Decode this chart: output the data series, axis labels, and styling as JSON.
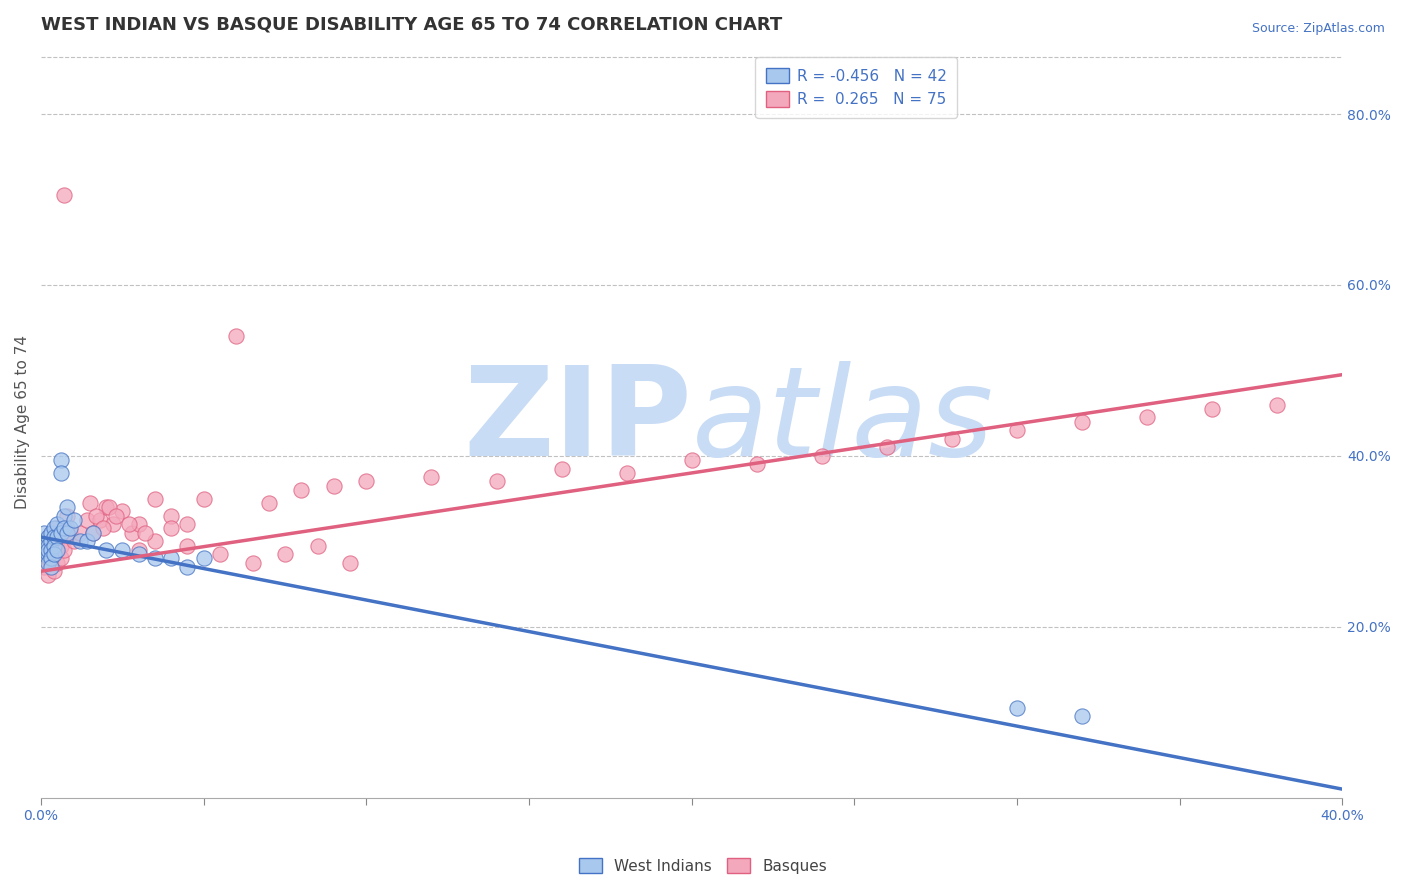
{
  "title": "WEST INDIAN VS BASQUE DISABILITY AGE 65 TO 74 CORRELATION CHART",
  "source": "Source: ZipAtlas.com",
  "ylabel": "Disability Age 65 to 74",
  "xlim": [
    0.0,
    0.4
  ],
  "ylim": [
    0.0,
    0.88
  ],
  "yticks": [
    0.0,
    0.2,
    0.4,
    0.6,
    0.8
  ],
  "ytick_labels": [
    "",
    "20.0%",
    "40.0%",
    "60.0%",
    "80.0%"
  ],
  "west_indians_r": "-0.456",
  "west_indians_n": "42",
  "basques_r": "0.265",
  "basques_n": "75",
  "west_indians_color": "#A8C8EE",
  "basques_color": "#F4A8BC",
  "west_indians_line_color": "#4472C4",
  "basques_line_color": "#E06080",
  "background_color": "#FFFFFF",
  "watermark_color": "#C8DCF5",
  "west_indians_x": [
    0.001,
    0.001,
    0.001,
    0.001,
    0.002,
    0.002,
    0.002,
    0.002,
    0.002,
    0.003,
    0.003,
    0.003,
    0.003,
    0.003,
    0.004,
    0.004,
    0.004,
    0.004,
    0.005,
    0.005,
    0.005,
    0.006,
    0.006,
    0.006,
    0.007,
    0.007,
    0.008,
    0.008,
    0.009,
    0.01,
    0.012,
    0.014,
    0.016,
    0.02,
    0.025,
    0.03,
    0.035,
    0.04,
    0.045,
    0.05,
    0.3,
    0.32
  ],
  "west_indians_y": [
    0.3,
    0.295,
    0.285,
    0.31,
    0.305,
    0.295,
    0.285,
    0.29,
    0.275,
    0.3,
    0.31,
    0.29,
    0.28,
    0.27,
    0.315,
    0.305,
    0.295,
    0.285,
    0.32,
    0.305,
    0.29,
    0.31,
    0.395,
    0.38,
    0.33,
    0.315,
    0.34,
    0.31,
    0.315,
    0.325,
    0.3,
    0.3,
    0.31,
    0.29,
    0.29,
    0.285,
    0.28,
    0.28,
    0.27,
    0.28,
    0.105,
    0.095
  ],
  "basques_x": [
    0.001,
    0.001,
    0.001,
    0.002,
    0.002,
    0.002,
    0.002,
    0.003,
    0.003,
    0.003,
    0.003,
    0.004,
    0.004,
    0.004,
    0.005,
    0.005,
    0.005,
    0.005,
    0.006,
    0.006,
    0.006,
    0.007,
    0.007,
    0.008,
    0.008,
    0.009,
    0.01,
    0.012,
    0.014,
    0.016,
    0.018,
    0.02,
    0.022,
    0.025,
    0.028,
    0.03,
    0.035,
    0.04,
    0.045,
    0.05,
    0.06,
    0.07,
    0.08,
    0.09,
    0.1,
    0.12,
    0.14,
    0.16,
    0.18,
    0.2,
    0.22,
    0.24,
    0.26,
    0.28,
    0.3,
    0.32,
    0.34,
    0.36,
    0.38,
    0.03,
    0.035,
    0.04,
    0.045,
    0.055,
    0.065,
    0.075,
    0.085,
    0.095,
    0.015,
    0.017,
    0.019,
    0.021,
    0.023,
    0.027,
    0.032
  ],
  "basques_y": [
    0.285,
    0.3,
    0.27,
    0.29,
    0.28,
    0.295,
    0.26,
    0.305,
    0.29,
    0.275,
    0.31,
    0.285,
    0.295,
    0.265,
    0.3,
    0.29,
    0.275,
    0.315,
    0.295,
    0.31,
    0.28,
    0.705,
    0.29,
    0.33,
    0.315,
    0.31,
    0.3,
    0.31,
    0.325,
    0.31,
    0.325,
    0.34,
    0.32,
    0.335,
    0.31,
    0.32,
    0.35,
    0.33,
    0.32,
    0.35,
    0.54,
    0.345,
    0.36,
    0.365,
    0.37,
    0.375,
    0.37,
    0.385,
    0.38,
    0.395,
    0.39,
    0.4,
    0.41,
    0.42,
    0.43,
    0.44,
    0.445,
    0.455,
    0.46,
    0.29,
    0.3,
    0.315,
    0.295,
    0.285,
    0.275,
    0.285,
    0.295,
    0.275,
    0.345,
    0.33,
    0.315,
    0.34,
    0.33,
    0.32,
    0.31
  ],
  "wi_line_x": [
    0.0,
    0.4
  ],
  "wi_line_y": [
    0.305,
    0.01
  ],
  "ba_line_x": [
    0.0,
    0.4
  ],
  "ba_line_y": [
    0.265,
    0.495
  ],
  "title_fontsize": 13,
  "axis_label_fontsize": 11,
  "tick_fontsize": 10,
  "legend_fontsize": 11
}
